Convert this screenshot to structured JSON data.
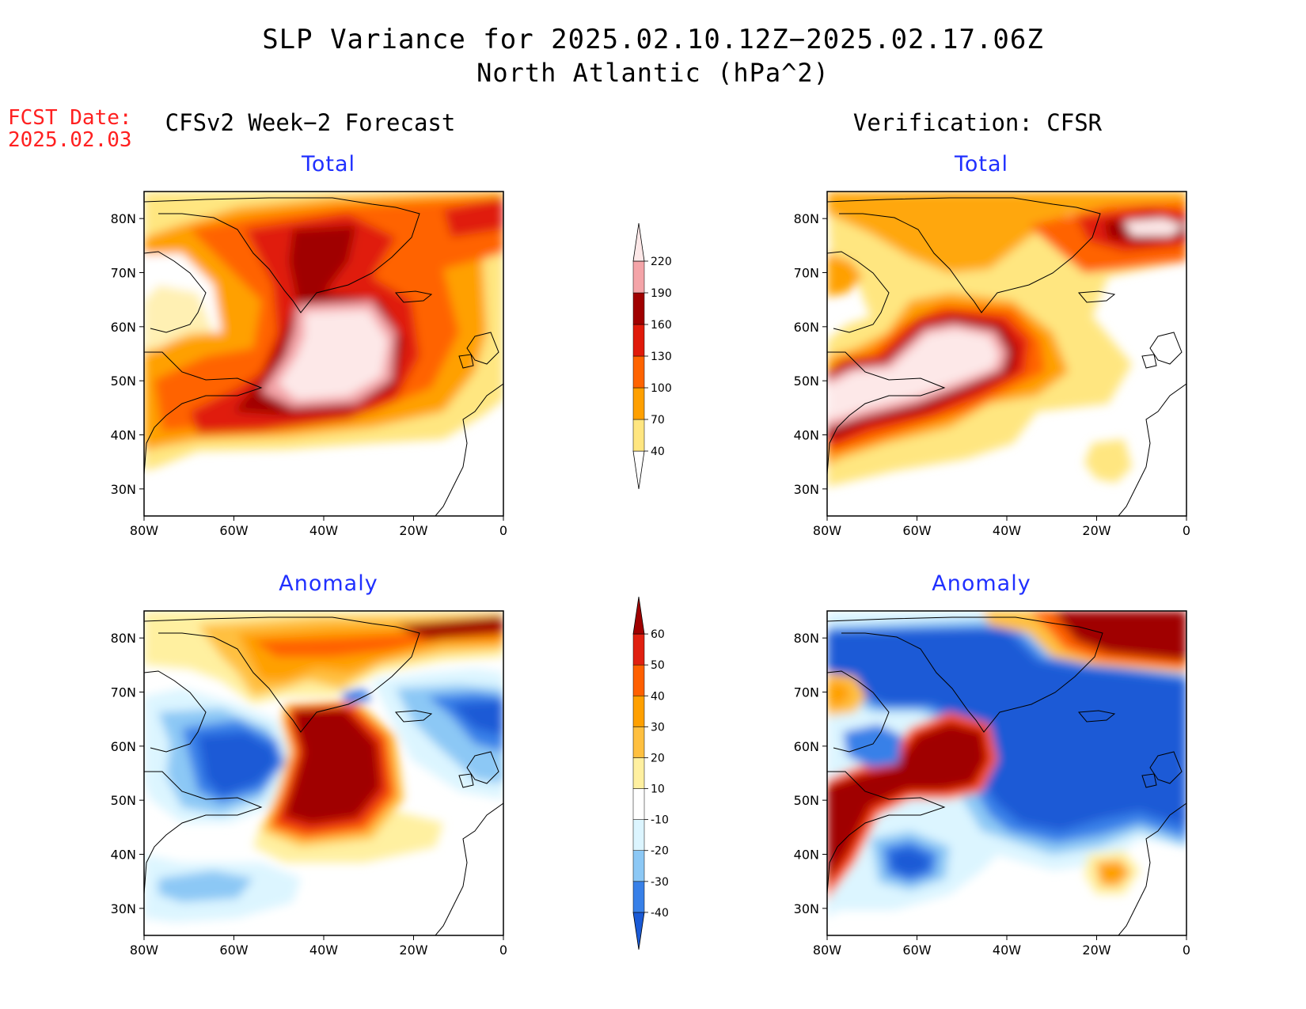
{
  "title_line1": "SLP Variance for 2025.02.10.12Z−2025.02.17.06Z",
  "title_line2": "North Atlantic (hPa^2)",
  "fcst_label_line1": "FCST Date:",
  "fcst_label_line2": "2025.02.03",
  "col_left_title": "CFSv2 Week−2 Forecast",
  "col_right_title": "Verification: CFSR",
  "panels": {
    "forecast_total": {
      "title": "Total"
    },
    "verif_total": {
      "title": "Total"
    },
    "forecast_anom": {
      "title": "Anomaly"
    },
    "verif_anom": {
      "title": "Anomaly"
    }
  },
  "axes": {
    "lon_labels": [
      "80W",
      "60W",
      "40W",
      "20W",
      "0"
    ],
    "lat_labels": [
      "80N",
      "70N",
      "60N",
      "50N",
      "40N",
      "30N"
    ],
    "lon_range": [
      -80,
      0
    ],
    "lat_range": [
      25,
      85
    ]
  },
  "total_colorbar": {
    "levels": [
      "40",
      "70",
      "100",
      "130",
      "160",
      "190",
      "220"
    ],
    "colors": [
      "#ffffff",
      "#ffe680",
      "#ffa000",
      "#ff6400",
      "#e01a0a",
      "#a00000",
      "#f4a4a8",
      "#fde8e8"
    ]
  },
  "anom_colorbar": {
    "levels": [
      "-40",
      "-30",
      "-20",
      "-10",
      "10",
      "20",
      "30",
      "40",
      "50",
      "60"
    ],
    "colors": [
      "#1a5ad6",
      "#3880e8",
      "#8cc8f5",
      "#dcf5ff",
      "#ffffff",
      "#fff0a0",
      "#ffc040",
      "#ffa000",
      "#ff6000",
      "#e02010",
      "#a00000"
    ]
  }
}
